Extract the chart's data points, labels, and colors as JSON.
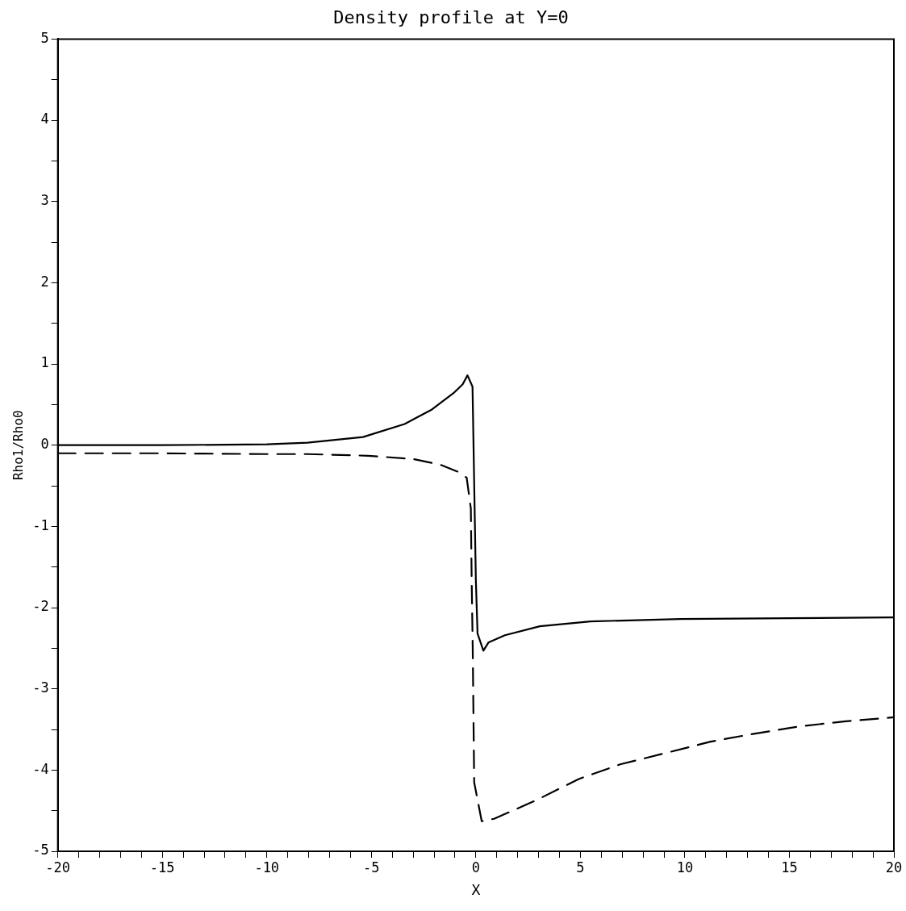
{
  "chart_data": {
    "type": "line",
    "title": "Density profile at Y=0",
    "xlabel": "X",
    "ylabel": "Rho1/Rho0",
    "series": [
      {
        "color": "#000000",
        "line_style": "solid",
        "x": [
          -20,
          -15,
          -10,
          -8.06,
          -5.4,
          -3.41,
          -2.1,
          -1.03,
          -0.63,
          -0.4,
          -0.16,
          0.0,
          0.08,
          0.36,
          0.6,
          1.39,
          3.06,
          5.48,
          9.8,
          15,
          20
        ],
        "values": [
          0.0,
          0.0,
          0.01,
          0.03,
          0.1,
          0.26,
          0.44,
          0.65,
          0.75,
          0.86,
          0.72,
          -1.66,
          -2.32,
          -2.53,
          -2.43,
          -2.34,
          -2.23,
          -2.17,
          -2.14,
          -2.13,
          -2.12
        ]
      },
      {
        "color": "#000000",
        "line_style": "dashed",
        "x": [
          -20,
          -15,
          -10,
          -8.06,
          -5.16,
          -3.02,
          -1.71,
          -0.83,
          -0.44,
          -0.24,
          -0.2,
          -0.15,
          -0.08,
          0.28,
          0.87,
          2.9,
          4.92,
          6.9,
          9.09,
          11.23,
          13.37,
          15.56,
          17.7,
          20
        ],
        "values": [
          -0.1,
          -0.1,
          -0.11,
          -0.11,
          -0.13,
          -0.17,
          -0.24,
          -0.33,
          -0.4,
          -0.78,
          -1.66,
          -2.5,
          -4.15,
          -4.63,
          -4.6,
          -4.37,
          -4.11,
          -3.93,
          -3.79,
          -3.65,
          -3.55,
          -3.46,
          -3.4,
          -3.35
        ]
      }
    ],
    "xlim": [
      -20,
      20
    ],
    "ylim": [
      -5,
      5
    ],
    "xticks": [
      -20,
      {
        "value": -19,
        "label": null
      },
      {
        "value": -18,
        "label": null
      },
      {
        "value": -17,
        "label": null
      },
      {
        "value": -16,
        "label": null
      },
      -15,
      {
        "value": -14,
        "label": null
      },
      {
        "value": -13,
        "label": null
      },
      {
        "value": -12,
        "label": null
      },
      {
        "value": -11,
        "label": null
      },
      -10,
      {
        "value": -9,
        "label": null
      },
      {
        "value": -8,
        "label": null
      },
      {
        "value": -7,
        "label": null
      },
      {
        "value": -6,
        "label": null
      },
      -5,
      {
        "value": -4,
        "label": null
      },
      {
        "value": -3,
        "label": null
      },
      {
        "value": -2,
        "label": null
      },
      {
        "value": -1,
        "label": null
      },
      0,
      {
        "value": 1,
        "label": null
      },
      {
        "value": 2,
        "label": null
      },
      {
        "value": 3,
        "label": null
      },
      {
        "value": 4,
        "label": null
      },
      5,
      {
        "value": 6,
        "label": null
      },
      {
        "value": 7,
        "label": null
      },
      {
        "value": 8,
        "label": null
      },
      {
        "value": 9,
        "label": null
      },
      10,
      {
        "value": 11,
        "label": null
      },
      {
        "value": 12,
        "label": null
      },
      {
        "value": 13,
        "label": null
      },
      {
        "value": 14,
        "label": null
      },
      15,
      {
        "value": 16,
        "label": null
      },
      {
        "value": 17,
        "label": null
      },
      {
        "value": 18,
        "label": null
      },
      {
        "value": 19,
        "label": null
      },
      20
    ],
    "yticks": [
      -5,
      {
        "value": -4.5,
        "label": null
      },
      -4,
      {
        "value": -3.5,
        "label": null
      },
      -3,
      {
        "value": -2.5,
        "label": null
      },
      -2,
      {
        "value": -1.5,
        "label": null
      },
      -1,
      {
        "value": -0.5,
        "label": null
      },
      0,
      {
        "value": 0.5,
        "label": null
      },
      1,
      {
        "value": 1.5,
        "label": null
      },
      2,
      {
        "value": 2.5,
        "label": null
      },
      3,
      {
        "value": 3.5,
        "label": null
      },
      4,
      {
        "value": 4.5,
        "label": null
      },
      5
    ],
    "grid": false,
    "legend": false,
    "marker": "none"
  }
}
